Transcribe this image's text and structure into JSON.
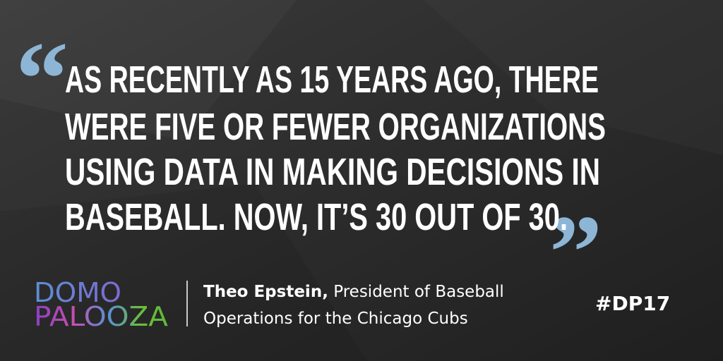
{
  "quote": {
    "open_mark": "“",
    "close_mark": "”",
    "lines": [
      "AS RECENTLY AS 15 YEARS AGO, THERE",
      "WERE FIVE OR FEWER ORGANIZATIONS",
      "USING DATA IN MAKING DECISIONS IN",
      "BASEBALL. NOW, IT’S 30 OUT OF 30."
    ]
  },
  "logo": {
    "line1": "DOMO",
    "line2": "PALOOZA"
  },
  "attribution": {
    "name": "Theo Epstein,",
    "role_lines": [
      "President of Baseball",
      "Operations for the Chicago Cubs"
    ]
  },
  "hashtag": "#DP17"
}
